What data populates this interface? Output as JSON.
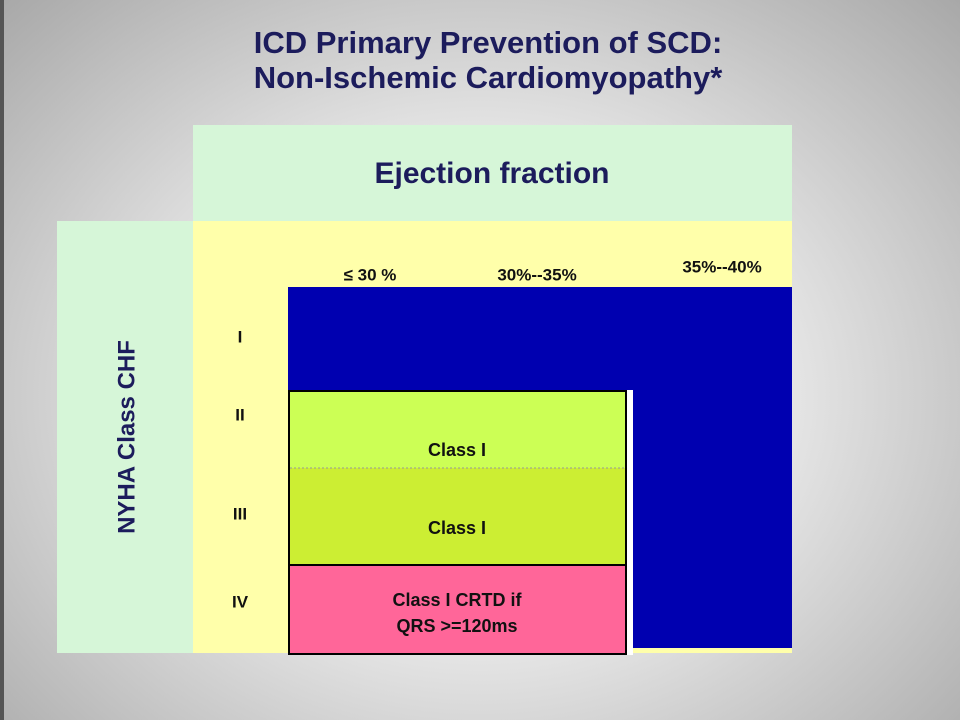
{
  "title": [
    "ICD Primary Prevention of SCD:",
    "Non-Ischemic Cardiomyopathy*"
  ],
  "table": {
    "column_header": "Ejection  fraction",
    "row_header": "NYHA Class CHF",
    "columns": [
      "≤ 30 %",
      "30%--35%",
      "35%--40%"
    ],
    "rows": [
      "I",
      "II",
      "III",
      "IV"
    ],
    "cells": [
      "Class I",
      "Class I",
      [
        "Class I CRTD if",
        "QRS >=120ms"
      ]
    ]
  }
}
